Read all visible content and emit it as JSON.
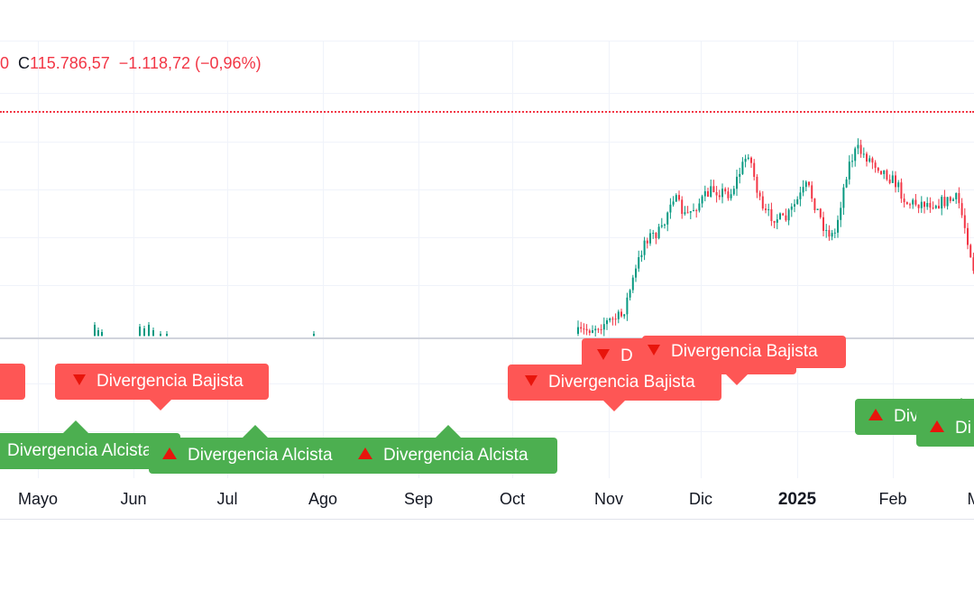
{
  "legend": {
    "partial_prev": "0",
    "close_label": "C",
    "close_value": "115.786,57",
    "change": "−1.118,72 (−0,96%)"
  },
  "colors": {
    "up": "#089981",
    "down": "#f23645",
    "bear_label": "#fe5655",
    "bull_label": "#4caf50",
    "icon": "#e8150c"
  },
  "time_axis": [
    "Mayo",
    "Jun",
    "Jul",
    "Ago",
    "Sep",
    "Oct",
    "Nov",
    "Dic",
    "2025",
    "Feb",
    "M"
  ],
  "labels": {
    "bear": "Divergencia Bajista",
    "bull": "Divergencia Alcista",
    "bear_trunc": "D",
    "bull_trunc1": "Div",
    "bull_trunc2": "Di"
  },
  "icons": {
    "bear": "triangle-down-icon",
    "bull": "triangle-up-icon"
  }
}
